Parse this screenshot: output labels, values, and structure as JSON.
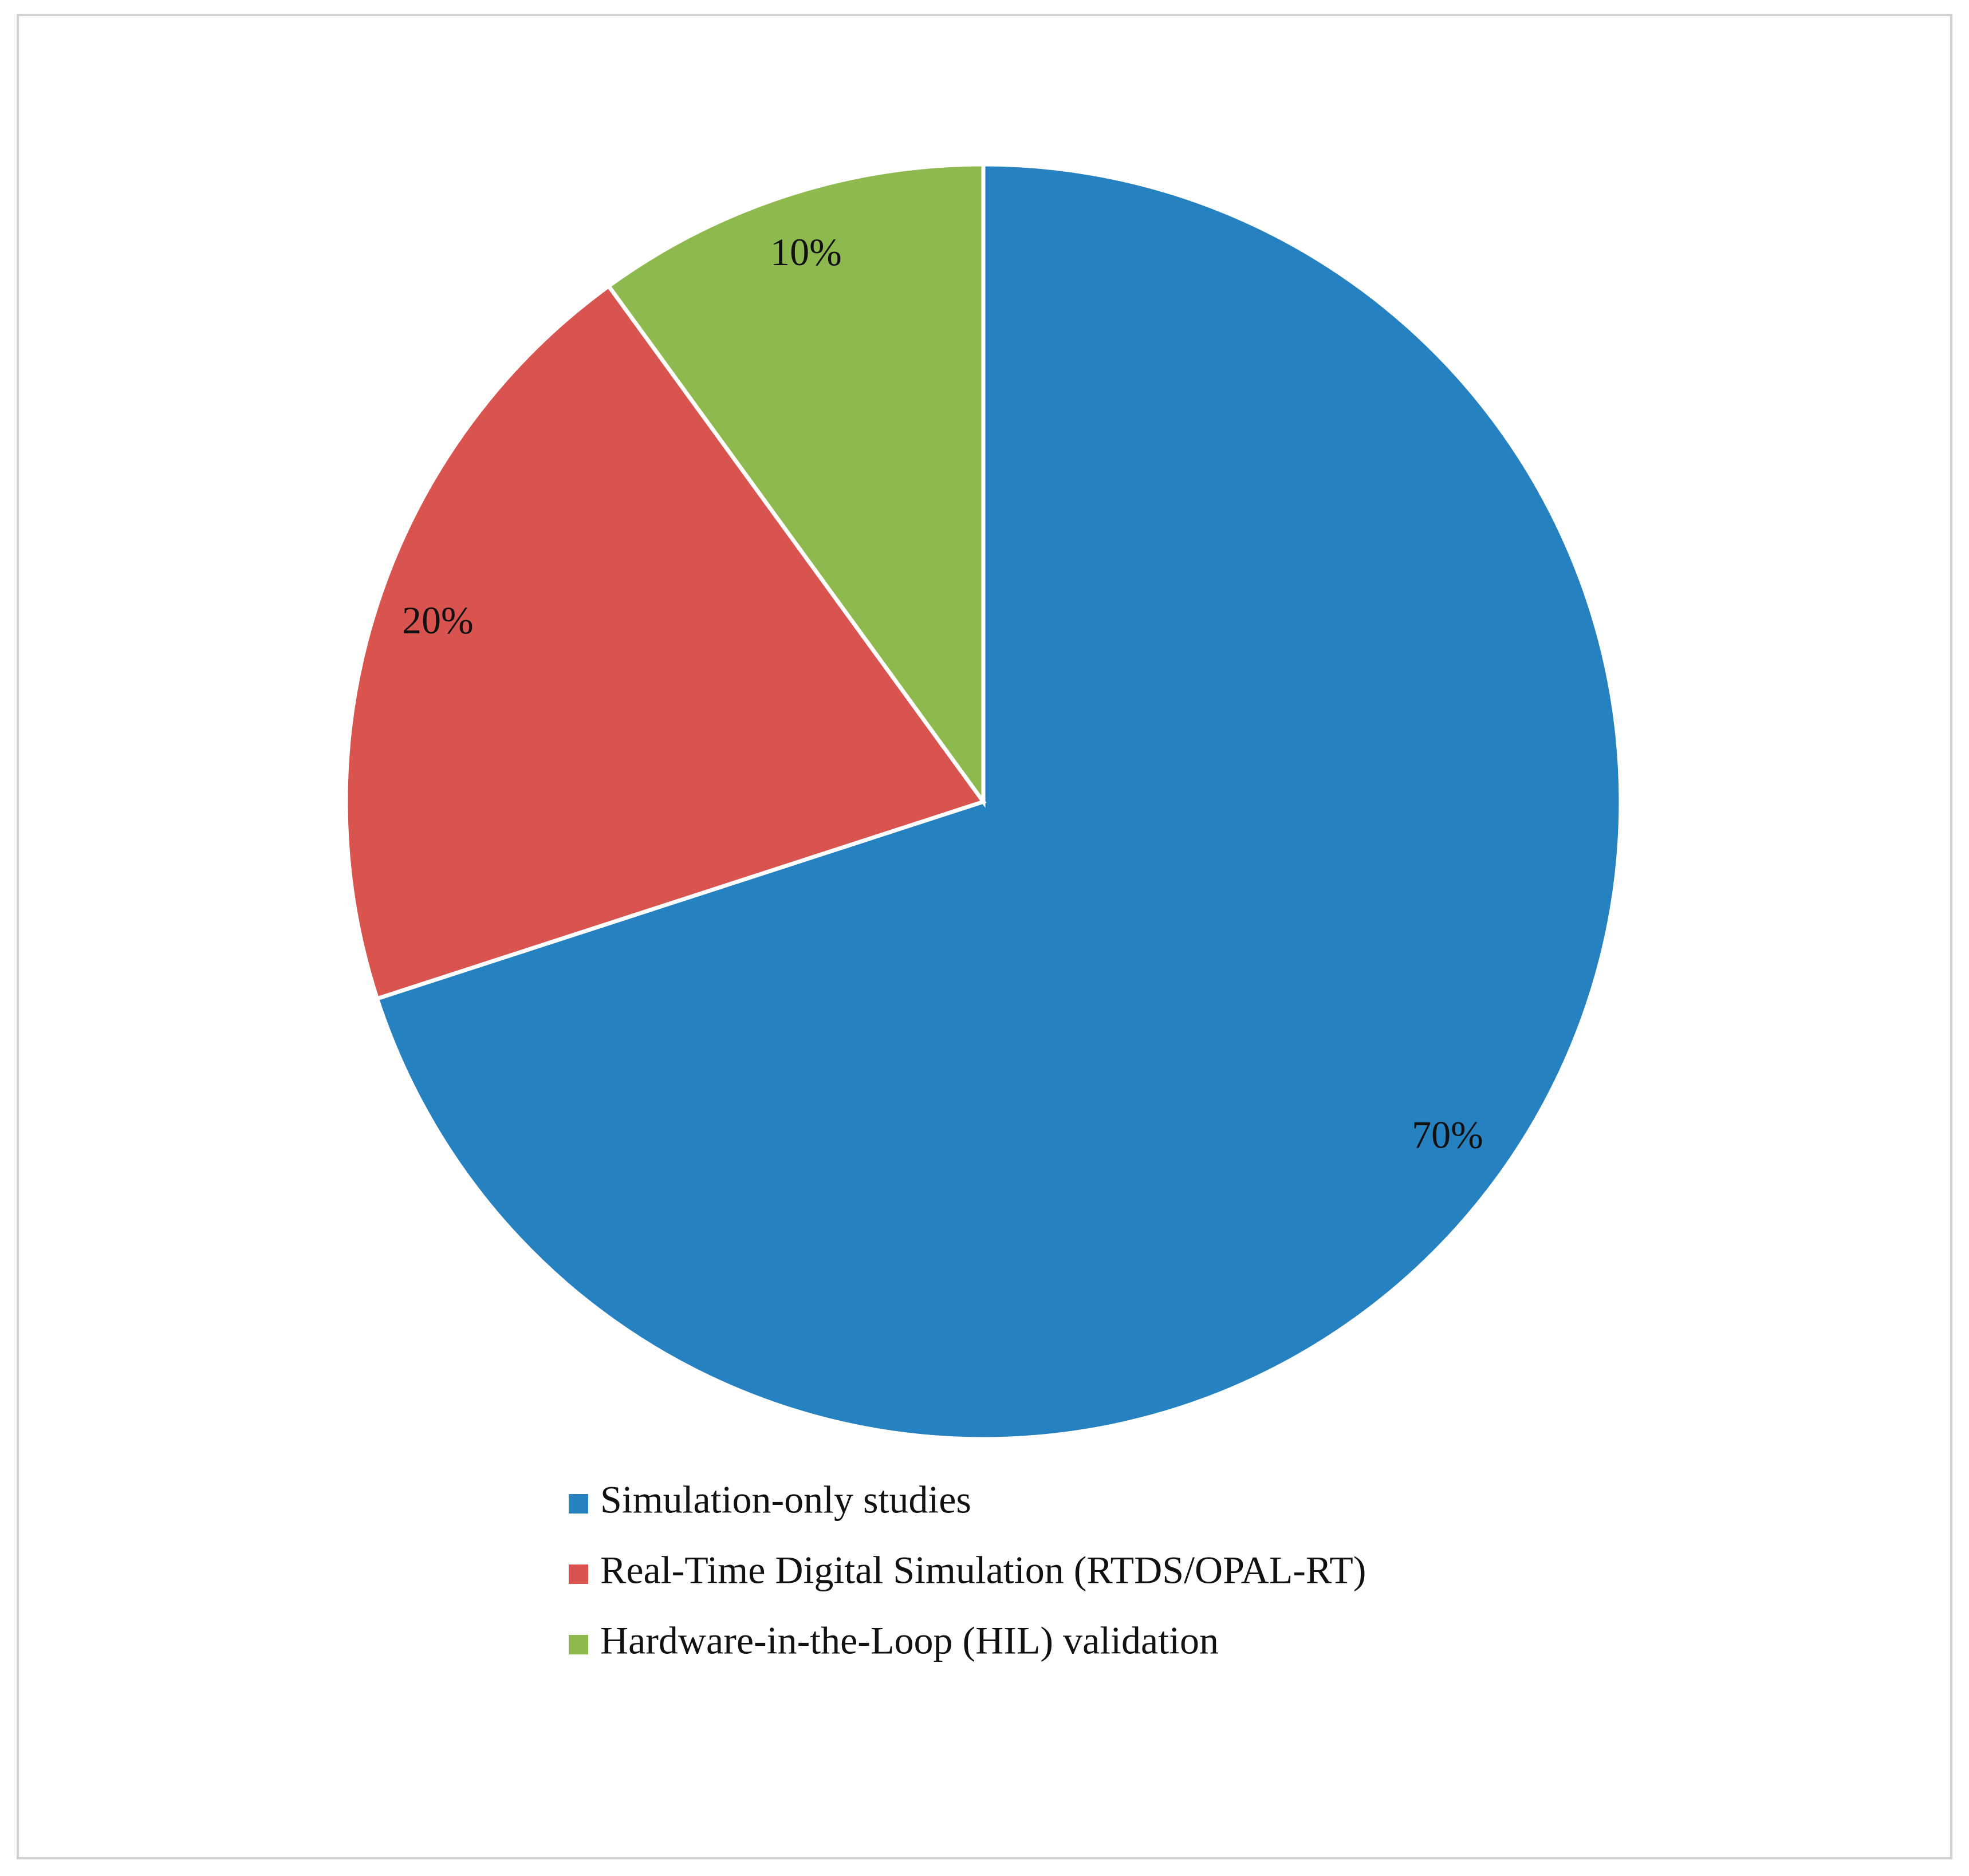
{
  "chart_data": {
    "type": "pie",
    "categories": [
      "Simulation-only studies",
      "Real-Time Digital Simulation (RTDS/OPAL-RT)",
      "Hardware-in-the-Loop (HIL) validation"
    ],
    "values": [
      70,
      20,
      10
    ],
    "value_labels": [
      "70%",
      "20%",
      "10%"
    ],
    "colors": [
      "#2581c0",
      "#d9534f",
      "#8db94f"
    ],
    "legend": "bottom"
  }
}
